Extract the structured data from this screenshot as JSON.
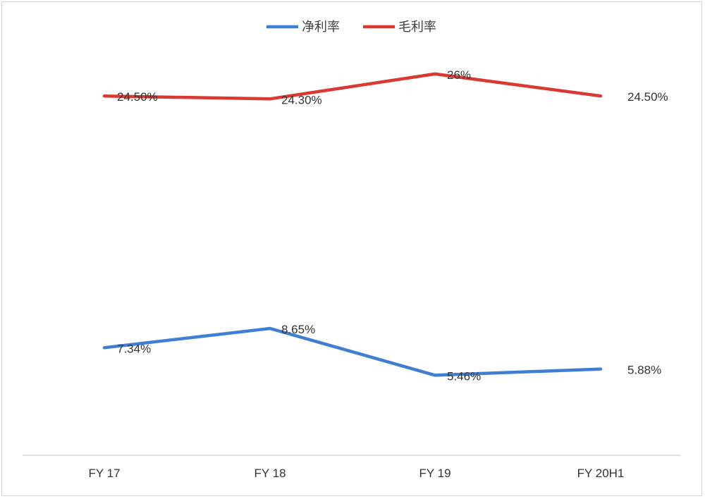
{
  "chart_data": {
    "type": "line",
    "categories": [
      "FY 17",
      "FY 18",
      "FY 19",
      "FY 20H1"
    ],
    "series": [
      {
        "name": "净利率",
        "color": "#3f7fd3",
        "values": [
          7.34,
          8.65,
          5.46,
          5.88
        ],
        "labels": [
          "7.34%",
          "8.65%",
          "5.46%",
          "5.88%"
        ]
      },
      {
        "name": "毛利率",
        "color": "#d83a31",
        "values": [
          24.5,
          24.3,
          26,
          24.5
        ],
        "labels": [
          "24.50%",
          "24.30%",
          "26%",
          "24.50%"
        ]
      }
    ],
    "y_range": [
      0,
      30
    ],
    "y_unit": "%",
    "gridlines": false,
    "y_axis_visible": false,
    "legend_position": "top-center"
  }
}
